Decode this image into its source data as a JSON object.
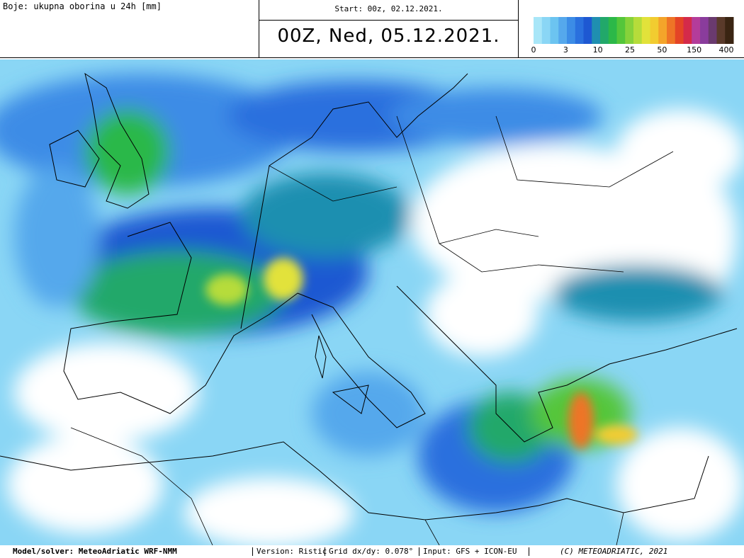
{
  "header": {
    "left_label": "Boje: ukupna oborina u 24h [mm]",
    "start": "Start: 00z, 02.12.2021.",
    "valid": "00Z, Ned, 05.12.2021."
  },
  "legend": {
    "colors": [
      "#a8e6f8",
      "#8ad6f5",
      "#6cc4f0",
      "#55a8ec",
      "#3c8ce6",
      "#2a70de",
      "#1e58d2",
      "#1f8fb0",
      "#22a86a",
      "#2cb848",
      "#54c63a",
      "#86d23a",
      "#b6dc3a",
      "#e2e23a",
      "#f2cc30",
      "#f4a42a",
      "#ee7426",
      "#e44426",
      "#d42a4a",
      "#b43c9a",
      "#8a3c9c",
      "#6a3a6e",
      "#5a3a2a",
      "#3a2412"
    ],
    "ticks": [
      0,
      3,
      10,
      25,
      50,
      150,
      400
    ]
  },
  "footer": {
    "model": "Model/solver: MeteoAdriatic WRF-NMM",
    "version": "Version: Ristic",
    "grid": "Grid dx/dy: 0.078°",
    "input": "Input: GFS + ICON-EU",
    "copyright": "(C) METEOADRIATIC, 2021"
  }
}
